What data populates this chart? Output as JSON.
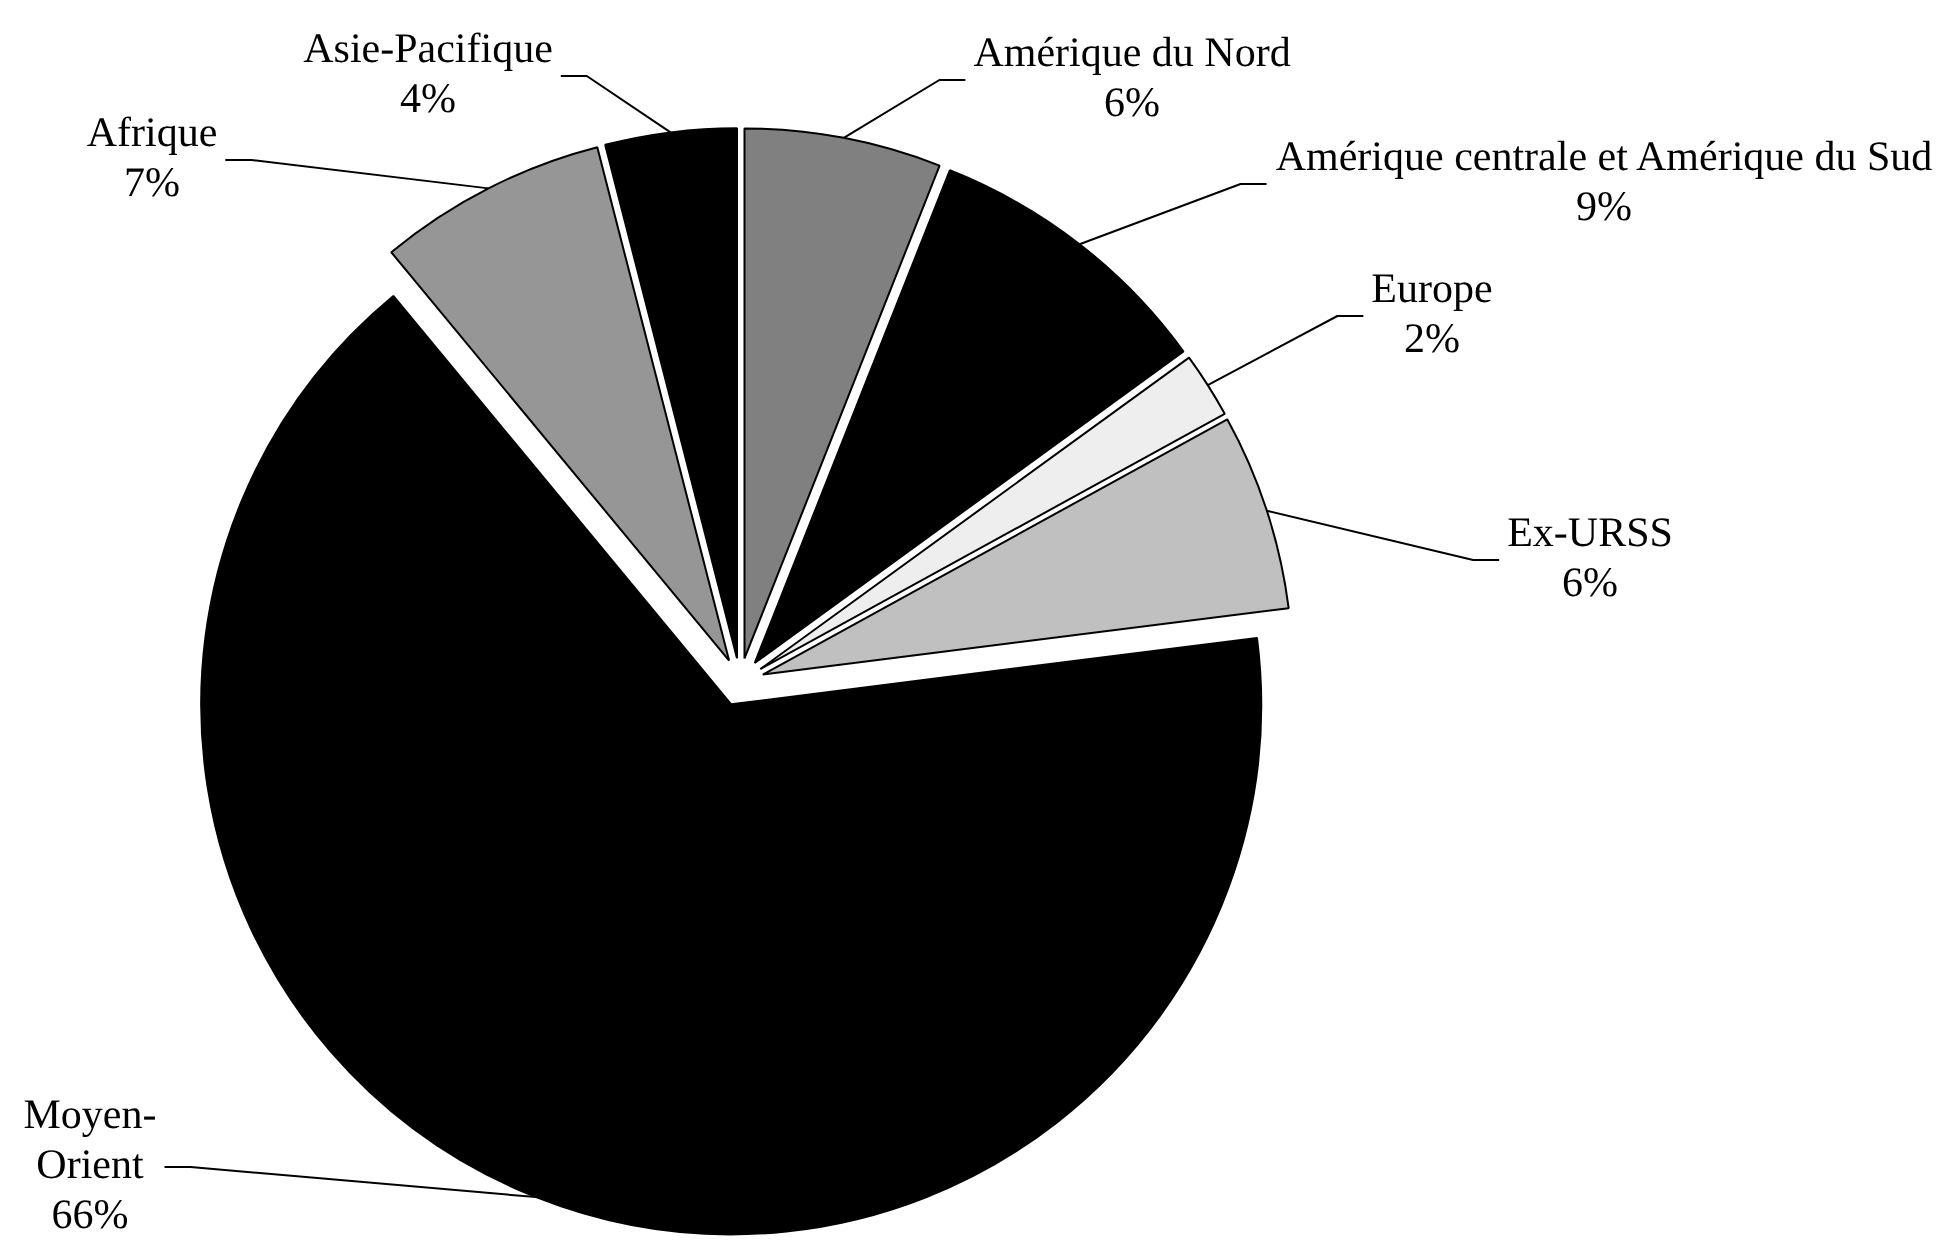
{
  "chart_data": {
    "type": "pie",
    "categories": [
      "Amérique du Nord",
      "Amérique centrale et Amérique du Sud",
      "Europe",
      "Ex-URSS",
      "Moyen-Orient",
      "Afrique",
      "Asie-Pacifique"
    ],
    "values": [
      6,
      9,
      2,
      6,
      66,
      7,
      4
    ],
    "value_labels": [
      "6%",
      "9%",
      "2%",
      "6%",
      "66%",
      "7%",
      "4%"
    ],
    "colors": [
      "#808080",
      "#000000",
      "#eeeeee",
      "#c0c0c0",
      "#000000",
      "#969696",
      "#000000"
    ]
  }
}
